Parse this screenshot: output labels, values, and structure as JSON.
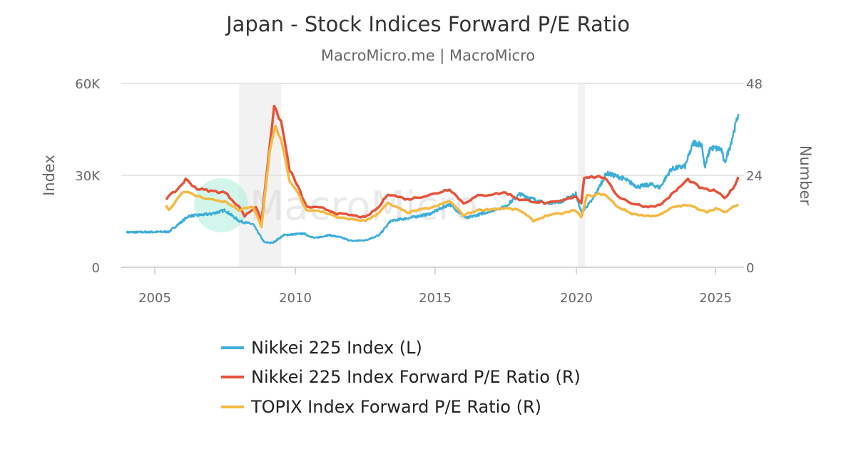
{
  "chart_data": {
    "type": "line",
    "title": "Japan - Stock Indices Forward P/E Ratio",
    "subtitle": "MacroMicro.me | MacroMicro",
    "watermark": "MacroMicro",
    "xlim": [
      2003.8,
      2026.0
    ],
    "x_ticks": [
      "2005",
      "2010",
      "2015",
      "2020",
      "2025"
    ],
    "y_left": {
      "label": "Index",
      "ylim": [
        0,
        60000
      ],
      "ticks": [
        "0",
        "30K",
        "60K"
      ]
    },
    "y_right": {
      "label": "Number",
      "ylim": [
        0,
        48
      ],
      "ticks": [
        "0",
        "24",
        "48"
      ]
    },
    "grid": true,
    "legend_position": "bottom",
    "shaded_periods": [
      [
        2008.0,
        2009.5
      ],
      [
        2020.08,
        2020.33
      ]
    ],
    "series": [
      {
        "name": "Nikkei 225 Index (L)",
        "axis": "left",
        "color": "#3eaed9",
        "points": [
          [
            2004.0,
            11400
          ],
          [
            2005.5,
            11600
          ],
          [
            2006.2,
            16700
          ],
          [
            2007.0,
            17400
          ],
          [
            2007.5,
            18600
          ],
          [
            2008.0,
            15100
          ],
          [
            2008.5,
            14000
          ],
          [
            2008.9,
            8100
          ],
          [
            2009.2,
            8000
          ],
          [
            2009.6,
            10500
          ],
          [
            2010.3,
            11000
          ],
          [
            2010.7,
            9500
          ],
          [
            2011.2,
            10500
          ],
          [
            2011.6,
            9800
          ],
          [
            2012.0,
            8600
          ],
          [
            2012.5,
            8800
          ],
          [
            2013.0,
            10500
          ],
          [
            2013.4,
            15100
          ],
          [
            2014.0,
            16000
          ],
          [
            2014.8,
            17400
          ],
          [
            2015.5,
            20600
          ],
          [
            2016.1,
            16000
          ],
          [
            2016.8,
            17900
          ],
          [
            2017.5,
            19800
          ],
          [
            2018.0,
            23900
          ],
          [
            2018.9,
            20900
          ],
          [
            2019.5,
            21500
          ],
          [
            2020.0,
            24000
          ],
          [
            2020.2,
            17900
          ],
          [
            2020.6,
            22000
          ],
          [
            2021.1,
            30700
          ],
          [
            2021.7,
            29000
          ],
          [
            2022.2,
            26300
          ],
          [
            2022.7,
            27000
          ],
          [
            2023.0,
            26000
          ],
          [
            2023.4,
            32000
          ],
          [
            2023.9,
            33000
          ],
          [
            2024.2,
            40700
          ],
          [
            2024.5,
            40000
          ],
          [
            2024.6,
            32500
          ],
          [
            2024.8,
            39000
          ],
          [
            2025.2,
            38500
          ],
          [
            2025.3,
            33800
          ],
          [
            2025.5,
            39500
          ],
          [
            2025.8,
            50000
          ]
        ]
      },
      {
        "name": "Nikkei 225 Index Forward P/E Ratio (R)",
        "axis": "right",
        "color": "#e6533a",
        "points": [
          [
            2005.4,
            17.9
          ],
          [
            2005.8,
            20.3
          ],
          [
            2006.1,
            22.9
          ],
          [
            2006.5,
            20.5
          ],
          [
            2007.0,
            19.9
          ],
          [
            2007.5,
            19.5
          ],
          [
            2008.0,
            15.8
          ],
          [
            2008.2,
            13.4
          ],
          [
            2008.6,
            15.8
          ],
          [
            2008.8,
            12.1
          ],
          [
            2009.1,
            32.6
          ],
          [
            2009.25,
            41.5
          ],
          [
            2009.5,
            38.1
          ],
          [
            2009.8,
            25.5
          ],
          [
            2010.1,
            21.0
          ],
          [
            2010.4,
            15.8
          ],
          [
            2011.0,
            15.4
          ],
          [
            2011.5,
            14.0
          ],
          [
            2012.0,
            13.6
          ],
          [
            2012.5,
            13.0
          ],
          [
            2013.0,
            15.8
          ],
          [
            2013.3,
            19.2
          ],
          [
            2014.0,
            17.7
          ],
          [
            2015.0,
            19.2
          ],
          [
            2015.5,
            20.5
          ],
          [
            2016.0,
            16.7
          ],
          [
            2016.5,
            18.6
          ],
          [
            2017.5,
            19.5
          ],
          [
            2018.0,
            17.7
          ],
          [
            2019.0,
            16.7
          ],
          [
            2019.5,
            17.3
          ],
          [
            2020.0,
            18.6
          ],
          [
            2020.2,
            16.7
          ],
          [
            2020.3,
            23.6
          ],
          [
            2021.0,
            23.6
          ],
          [
            2021.5,
            18.6
          ],
          [
            2022.0,
            16.7
          ],
          [
            2022.5,
            15.8
          ],
          [
            2023.0,
            16.2
          ],
          [
            2023.5,
            19.5
          ],
          [
            2024.0,
            22.9
          ],
          [
            2024.5,
            20.5
          ],
          [
            2025.0,
            19.9
          ],
          [
            2025.3,
            18.0
          ],
          [
            2025.6,
            20.5
          ],
          [
            2025.8,
            23.6
          ]
        ]
      },
      {
        "name": "TOPIX Index Forward P/E Ratio (R)",
        "axis": "right",
        "color": "#f5b942",
        "points": [
          [
            2005.4,
            16.2
          ],
          [
            2005.5,
            14.9
          ],
          [
            2006.0,
            19.9
          ],
          [
            2006.5,
            18.6
          ],
          [
            2007.0,
            17.7
          ],
          [
            2007.5,
            17.1
          ],
          [
            2008.0,
            14.9
          ],
          [
            2008.5,
            15.8
          ],
          [
            2008.8,
            10.6
          ],
          [
            2009.1,
            30.7
          ],
          [
            2009.3,
            36.6
          ],
          [
            2009.5,
            33.5
          ],
          [
            2009.8,
            22.3
          ],
          [
            2010.1,
            19.5
          ],
          [
            2010.4,
            14.9
          ],
          [
            2011.0,
            14.5
          ],
          [
            2011.5,
            13.0
          ],
          [
            2012.5,
            12.1
          ],
          [
            2013.0,
            14.3
          ],
          [
            2013.3,
            16.7
          ],
          [
            2014.0,
            14.3
          ],
          [
            2015.0,
            15.8
          ],
          [
            2015.5,
            17.3
          ],
          [
            2016.0,
            13.6
          ],
          [
            2016.5,
            14.9
          ],
          [
            2017.5,
            15.4
          ],
          [
            2018.0,
            14.9
          ],
          [
            2018.5,
            12.1
          ],
          [
            2019.0,
            13.6
          ],
          [
            2019.5,
            14.0
          ],
          [
            2020.0,
            14.9
          ],
          [
            2020.2,
            13.0
          ],
          [
            2020.4,
            18.6
          ],
          [
            2021.0,
            19.2
          ],
          [
            2021.5,
            15.8
          ],
          [
            2022.0,
            14.0
          ],
          [
            2022.5,
            13.4
          ],
          [
            2023.0,
            13.6
          ],
          [
            2023.5,
            15.8
          ],
          [
            2024.0,
            16.2
          ],
          [
            2024.7,
            14.5
          ],
          [
            2025.0,
            15.4
          ],
          [
            2025.3,
            14.3
          ],
          [
            2025.8,
            16.4
          ]
        ]
      }
    ]
  }
}
